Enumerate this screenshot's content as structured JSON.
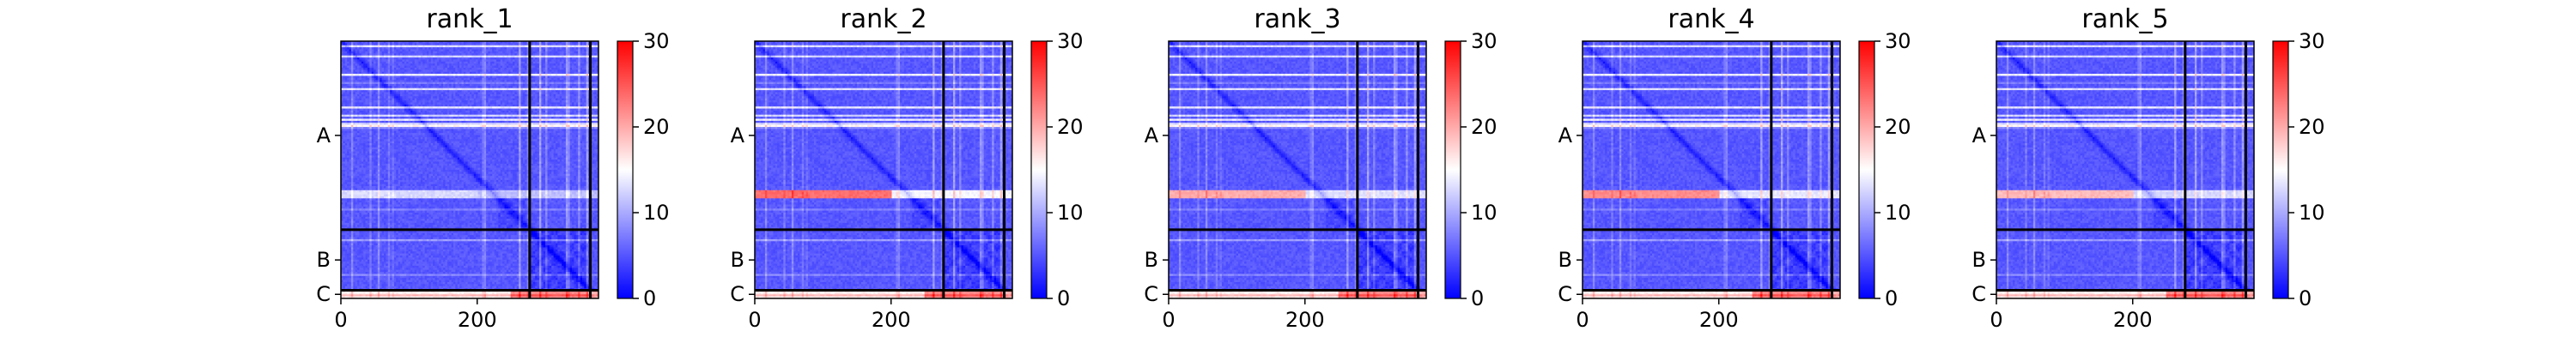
{
  "chart_data": {
    "type": "heatmap",
    "colorscale": {
      "low": "#0000ff",
      "mid": "#ffffff",
      "high": "#ff0000"
    },
    "panels": [
      {
        "title": "rank_1",
        "band": 0.15,
        "bandTail": 0.3
      },
      {
        "title": "rank_2",
        "band": 0.75,
        "bandTail": 0.65
      },
      {
        "title": "rank_3",
        "band": 0.55,
        "bandTail": 0.5
      },
      {
        "title": "rank_4",
        "band": 0.65,
        "bandTail": 0.55
      },
      {
        "title": "rank_5",
        "band": 0.5,
        "bandTail": 0.45
      }
    ],
    "matrix_size": 378,
    "chain_breaks": [
      277,
      366
    ],
    "x_ticks": [
      {
        "value": 0,
        "label": "0"
      },
      {
        "value": 200,
        "label": "200"
      }
    ],
    "y_chain_labels": [
      {
        "label": "A",
        "start": 0,
        "end": 277
      },
      {
        "label": "B",
        "start": 277,
        "end": 366
      },
      {
        "label": "C",
        "start": 366,
        "end": 378
      }
    ],
    "colorbar": {
      "range": [
        0,
        30
      ],
      "ticks": [
        {
          "value": 0,
          "label": "0"
        },
        {
          "value": 10,
          "label": "10"
        },
        {
          "value": 20,
          "label": "20"
        },
        {
          "value": 30,
          "label": "30"
        }
      ]
    }
  }
}
